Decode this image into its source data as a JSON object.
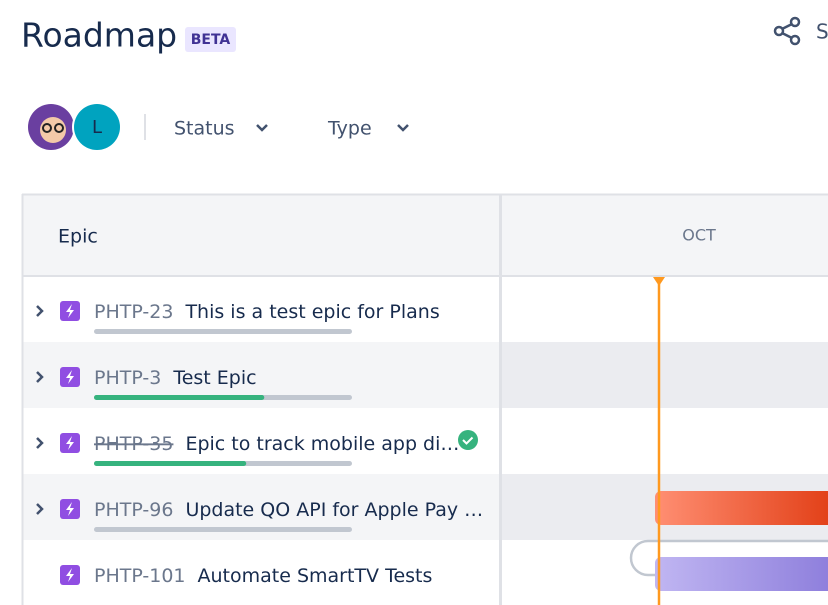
{
  "header": {
    "title": "Roadmap",
    "badge": "BETA",
    "share_label": "S"
  },
  "avatars": [
    {
      "initial": ""
    },
    {
      "initial": "L"
    }
  ],
  "filters": [
    "Status",
    "Type"
  ],
  "table": {
    "columns": [
      "Epic",
      "OCT"
    ],
    "rows": [
      {
        "key": "PHTP-23",
        "title": "This is a test epic for Plans",
        "progress": 0,
        "done": false,
        "expandable": true
      },
      {
        "key": "PHTP-3",
        "title": "Test Epic",
        "progress": 66,
        "done": false,
        "expandable": true
      },
      {
        "key": "PHTP-35",
        "title": "Epic to track mobile app di…",
        "progress": 59,
        "done": true,
        "expandable": true
      },
      {
        "key": "PHTP-96",
        "title": "Update QO API for Apple Pay …",
        "progress": 0,
        "done": false,
        "expandable": true
      },
      {
        "key": "PHTP-101",
        "title": "Automate SmartTV Tests",
        "progress": null,
        "done": false,
        "expandable": false
      }
    ]
  }
}
